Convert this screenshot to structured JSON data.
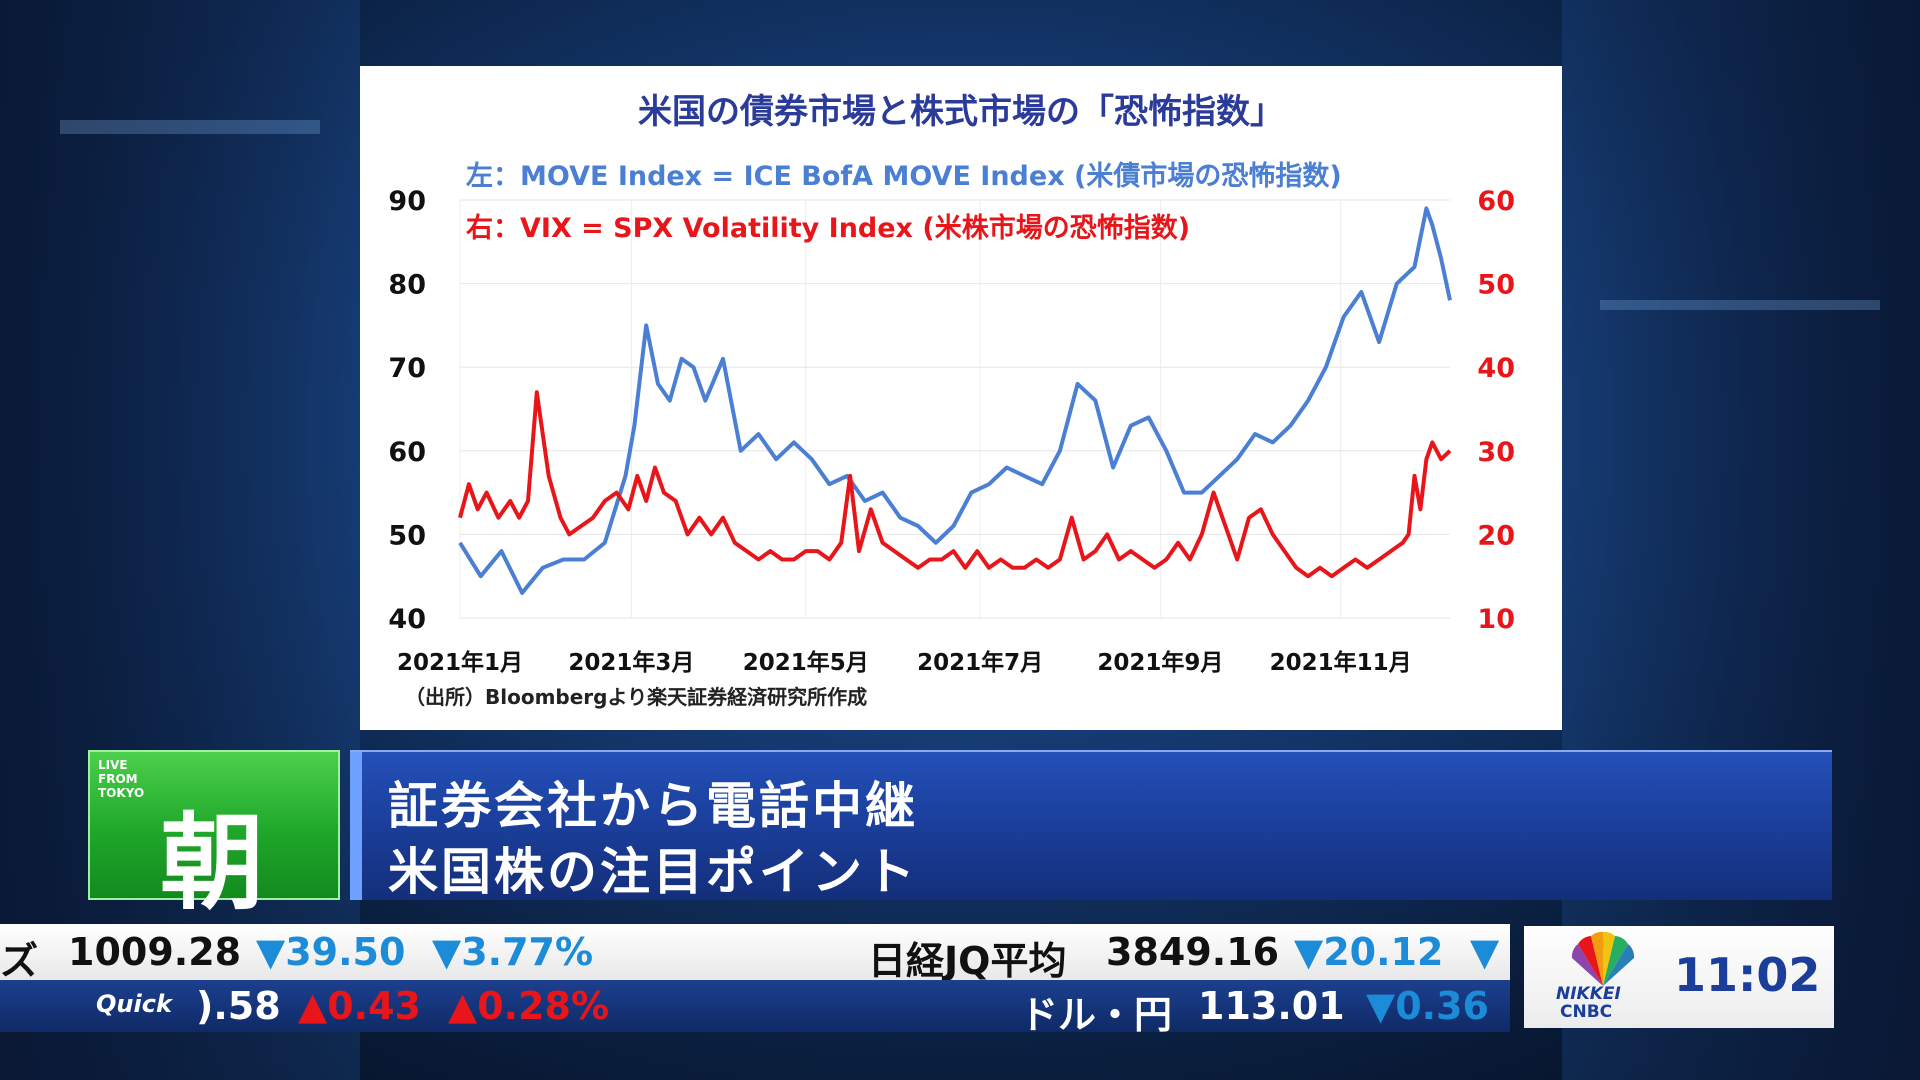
{
  "chart_data": {
    "type": "line",
    "title": "米国の債券市場と株式市場の「恐怖指数」",
    "subtitle_left": "左：MOVE Index = ICE BofA MOVE Index (米債市場の恐怖指数)",
    "subtitle_right": "右：VIX = SPX Volatility Index (米株市場の恐怖指数)",
    "source": "（出所）Bloombergより楽天証券経済研究所作成",
    "x_tick_labels": [
      "2021年1月",
      "2021年3月",
      "2021年5月",
      "2021年7月",
      "2021年9月",
      "2021年11月"
    ],
    "x_tick_positions": [
      1,
      59,
      118,
      177,
      238,
      299
    ],
    "x_range": [
      1,
      336
    ],
    "left_axis": {
      "ylim": [
        40,
        90
      ],
      "ticks": [
        "90",
        "80",
        "70",
        "60",
        "50",
        "40"
      ]
    },
    "right_axis": {
      "ylim": [
        10,
        60
      ],
      "ticks": [
        "60",
        "50",
        "40",
        "30",
        "20",
        "10"
      ]
    },
    "grid": true,
    "series": [
      {
        "axis": "left",
        "color": "#4a7fd4",
        "x": [
          1,
          8,
          15,
          22,
          29,
          36,
          43,
          50,
          57,
          60,
          64,
          68,
          72,
          76,
          80,
          84,
          90,
          96,
          102,
          108,
          114,
          120,
          126,
          132,
          138,
          144,
          150,
          156,
          162,
          168,
          174,
          180,
          186,
          192,
          198,
          204,
          210,
          216,
          222,
          228,
          234,
          240,
          246,
          252,
          258,
          264,
          270,
          276,
          282,
          288,
          294,
          300,
          306,
          312,
          318,
          324,
          328,
          330,
          333,
          336
        ],
        "y": [
          49,
          45,
          48,
          43,
          46,
          47,
          47,
          49,
          57,
          63,
          75,
          68,
          66,
          71,
          70,
          66,
          71,
          60,
          62,
          59,
          61,
          59,
          56,
          57,
          54,
          55,
          52,
          51,
          49,
          51,
          55,
          56,
          58,
          57,
          56,
          60,
          68,
          66,
          58,
          63,
          64,
          60,
          55,
          55,
          57,
          59,
          62,
          61,
          63,
          66,
          70,
          76,
          79,
          73,
          80,
          82,
          89,
          87,
          83,
          78
        ]
      },
      {
        "axis": "right",
        "color": "#e8161a",
        "x": [
          1,
          4,
          7,
          10,
          14,
          18,
          21,
          24,
          27,
          31,
          35,
          38,
          42,
          46,
          50,
          54,
          58,
          61,
          64,
          67,
          70,
          74,
          78,
          82,
          86,
          90,
          94,
          98,
          102,
          106,
          110,
          114,
          118,
          122,
          126,
          130,
          133,
          136,
          140,
          144,
          148,
          152,
          156,
          160,
          164,
          168,
          172,
          176,
          180,
          184,
          188,
          192,
          196,
          200,
          204,
          208,
          212,
          216,
          220,
          224,
          228,
          232,
          236,
          240,
          244,
          248,
          252,
          256,
          260,
          264,
          268,
          272,
          276,
          280,
          284,
          288,
          292,
          296,
          300,
          304,
          308,
          312,
          316,
          320,
          322,
          324,
          326,
          328,
          330,
          333,
          336
        ],
        "y": [
          22,
          26,
          23,
          25,
          22,
          24,
          22,
          24,
          37,
          27,
          22,
          20,
          21,
          22,
          24,
          25,
          23,
          27,
          24,
          28,
          25,
          24,
          20,
          22,
          20,
          22,
          19,
          18,
          17,
          18,
          17,
          17,
          18,
          18,
          17,
          19,
          27,
          18,
          23,
          19,
          18,
          17,
          16,
          17,
          17,
          18,
          16,
          18,
          16,
          17,
          16,
          16,
          17,
          16,
          17,
          22,
          17,
          18,
          20,
          17,
          18,
          17,
          16,
          17,
          19,
          17,
          20,
          25,
          21,
          17,
          22,
          23,
          20,
          18,
          16,
          15,
          16,
          15,
          16,
          17,
          16,
          17,
          18,
          19,
          20,
          27,
          23,
          29,
          31,
          29,
          30
        ]
      }
    ]
  },
  "lower_third": {
    "live_line1": "LIVE",
    "live_line2": "FROM",
    "live_line3": "TOKYO",
    "program_kanji": "朝",
    "headline_line1": "証券会社から電話中継",
    "headline_line2": "米国株の注目ポイント"
  },
  "ticker": {
    "top": {
      "partial_label": "ズ",
      "value1": "1009.28",
      "change1": "▼39.50",
      "pct1": "▼3.77%",
      "label2": "日経JQ平均",
      "value2": "3849.16",
      "change2": "▼20.12",
      "trail2": "▼"
    },
    "bottom": {
      "source_label": "Quick",
      "partial_value": ").58",
      "change1": "▲0.43",
      "pct1": "▲0.28%",
      "label2": "ドル・円",
      "value2": "113.01",
      "change2": "▼0.36"
    }
  },
  "branding": {
    "clock": "11:02",
    "logo_line1": "NIKKEI",
    "logo_line2": "CNBC"
  }
}
